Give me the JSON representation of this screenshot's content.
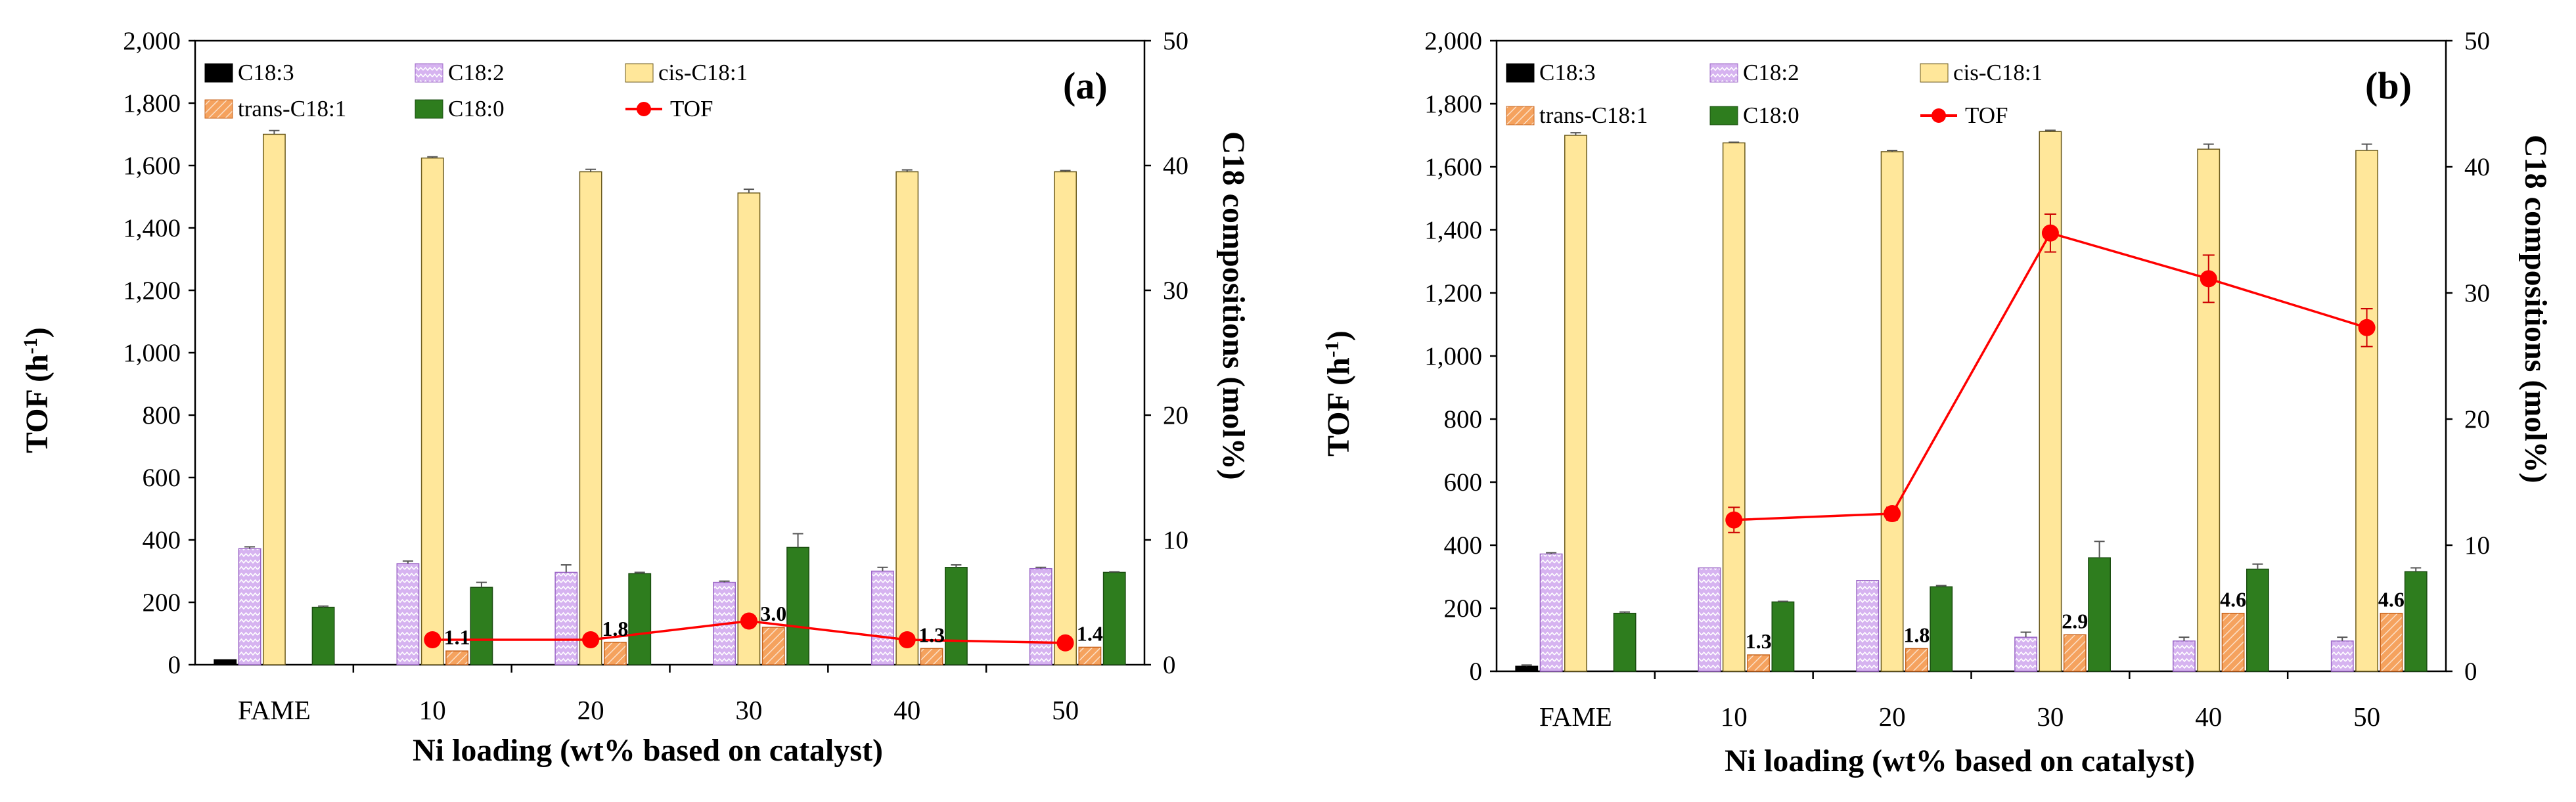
{
  "colors": {
    "C18:3": "#000000",
    "C18:2": "#d6b3f0",
    "cis-C18:1": "#ffe79a",
    "trans-C18:1": "#f5a25e",
    "C18:0": "#2e7d1e",
    "TOF": "#ff0000"
  },
  "chart_data": [
    {
      "type": "bar",
      "panel_label": "(a)",
      "categories": [
        "FAME",
        "10",
        "20",
        "30",
        "40",
        "50"
      ],
      "xlabel": "Ni loading (wt% based on catalyst)",
      "ylabel_left": "TOF (h",
      "ylabel_left_sup": "-1",
      "ylabel_left_end": ")",
      "ylabel_right": "C18 compositions  (mol%)",
      "ylim_left": [
        0,
        2000
      ],
      "ylim_right": [
        0,
        50
      ],
      "left_ticks": [
        "0",
        "200",
        "400",
        "600",
        "800",
        "1,000",
        "1,200",
        "1,400",
        "1,600",
        "1,800",
        "2,000"
      ],
      "right_ticks": [
        "0",
        "10",
        "20",
        "30",
        "40",
        "50"
      ],
      "legend": [
        "C18:3",
        "C18:2",
        "cis-C18:1",
        "trans-C18:1",
        "C18:0",
        "TOF"
      ],
      "series": [
        {
          "name": "C18:3",
          "axis": "right",
          "values": [
            0.4,
            0,
            0,
            0,
            0,
            0
          ],
          "errors": [
            0,
            0,
            0,
            0,
            0,
            0
          ]
        },
        {
          "name": "C18:2",
          "axis": "right",
          "values": [
            9.3,
            8.1,
            7.4,
            6.6,
            7.5,
            7.7
          ],
          "errors": [
            0.15,
            0.2,
            0.6,
            0.1,
            0.3,
            0.1
          ]
        },
        {
          "name": "cis-C18:1",
          "axis": "right",
          "values": [
            42.5,
            40.6,
            39.5,
            37.8,
            39.5,
            39.5
          ],
          "errors": [
            0.3,
            0.1,
            0.2,
            0.3,
            0.15,
            0.1
          ]
        },
        {
          "name": "trans-C18:1",
          "axis": "right",
          "values": [
            0,
            1.1,
            1.8,
            3.0,
            1.3,
            1.4
          ],
          "errors": [
            0,
            0,
            0,
            0,
            0,
            0
          ]
        },
        {
          "name": "C18:0",
          "axis": "right",
          "values": [
            4.6,
            6.2,
            7.3,
            9.4,
            7.8,
            7.4
          ],
          "errors": [
            0.1,
            0.4,
            0.1,
            1.1,
            0.2,
            0.05
          ]
        },
        {
          "name": "TOF",
          "type": "line",
          "axis": "left",
          "values": [
            null,
            80,
            80,
            140,
            80,
            70
          ],
          "errors": [
            0,
            0,
            0,
            0,
            0,
            0
          ]
        }
      ],
      "data_labels": [
        "1.1",
        "1.8",
        "3.0",
        "1.3",
        "1.4"
      ]
    },
    {
      "type": "bar",
      "panel_label": "(b)",
      "categories": [
        "FAME",
        "10",
        "20",
        "30",
        "40",
        "50"
      ],
      "xlabel": "Ni loading (wt% based on catalyst)",
      "ylabel_left": "TOF (h",
      "ylabel_left_sup": "-1",
      "ylabel_left_end": ")",
      "ylabel_right": "C18 compositions (mol%)",
      "ylim_left": [
        0,
        2000
      ],
      "ylim_right": [
        0,
        50
      ],
      "left_ticks": [
        "0",
        "200",
        "400",
        "600",
        "800",
        "1,000",
        "1,200",
        "1,400",
        "1,600",
        "1,800",
        "2,000"
      ],
      "right_ticks": [
        "0",
        "10",
        "20",
        "30",
        "40",
        "50"
      ],
      "legend": [
        "C18:3",
        "C18:2",
        "cis-C18:1",
        "trans-C18:1",
        "C18:0",
        "TOF"
      ],
      "series": [
        {
          "name": "C18:3",
          "axis": "right",
          "values": [
            0.4,
            0,
            0,
            0,
            0,
            0
          ],
          "errors": [
            0.1,
            0,
            0,
            0,
            0,
            0
          ]
        },
        {
          "name": "C18:2",
          "axis": "right",
          "values": [
            9.3,
            8.2,
            7.2,
            2.7,
            2.4,
            2.4
          ],
          "errors": [
            0.1,
            0,
            0,
            0.4,
            0.3,
            0.3
          ]
        },
        {
          "name": "cis-C18:1",
          "axis": "right",
          "values": [
            42.5,
            41.9,
            41.2,
            42.8,
            41.4,
            41.3
          ],
          "errors": [
            0.2,
            0.05,
            0.1,
            0.1,
            0.4,
            0.5
          ]
        },
        {
          "name": "trans-C18:1",
          "axis": "right",
          "values": [
            0,
            1.3,
            1.8,
            2.9,
            4.6,
            4.6
          ],
          "errors": [
            0,
            0,
            0,
            0,
            0,
            0
          ]
        },
        {
          "name": "C18:0",
          "axis": "right",
          "values": [
            4.6,
            5.5,
            6.7,
            9.0,
            8.1,
            7.9
          ],
          "errors": [
            0.1,
            0.05,
            0.1,
            1.3,
            0.4,
            0.3
          ]
        },
        {
          "name": "TOF",
          "type": "line",
          "axis": "left",
          "values": [
            null,
            480,
            500,
            1390,
            1245,
            1090
          ],
          "errors": [
            0,
            40,
            20,
            60,
            75,
            60
          ]
        }
      ],
      "data_labels": [
        "1.3",
        "1.8",
        "2.9",
        "4.6",
        "4.6"
      ]
    }
  ]
}
